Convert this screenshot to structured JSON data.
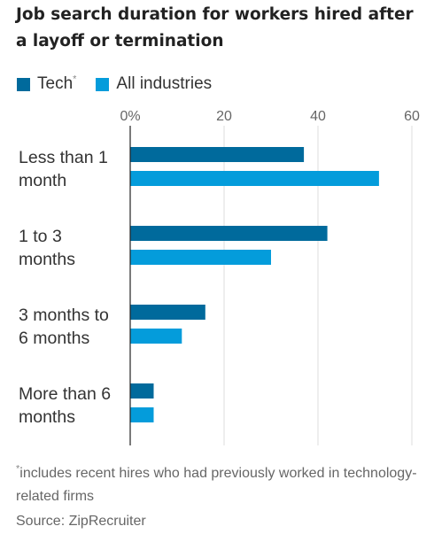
{
  "title": "Job search duration for workers hired after a layoff or termination",
  "legend": [
    {
      "label": "Tech",
      "marker": "*",
      "color": "#006a9c"
    },
    {
      "label": "All industries",
      "color": "#049cdb"
    }
  ],
  "footnote": {
    "marker": "*",
    "text": "includes recent hires who had previously worked in technology-related firms"
  },
  "source": "Source: ZipRecruiter",
  "chart_data": {
    "type": "bar",
    "orientation": "horizontal",
    "categories": [
      [
        "Less than 1",
        "month"
      ],
      [
        "1 to 3",
        "months"
      ],
      [
        "3 months to",
        "6 months"
      ],
      [
        "More than 6",
        "months"
      ]
    ],
    "series": [
      {
        "name": "Tech",
        "color": "#006a9c",
        "values": [
          37,
          42,
          16,
          5
        ]
      },
      {
        "name": "All industries",
        "color": "#049cdb",
        "values": [
          53,
          30,
          11,
          5
        ]
      }
    ],
    "xlim": [
      0,
      60
    ],
    "xticks": [
      0,
      20,
      40,
      60
    ],
    "xtick_labels": [
      "0%",
      "20",
      "40",
      "60"
    ],
    "grid": true,
    "legend_position": "top-left"
  }
}
